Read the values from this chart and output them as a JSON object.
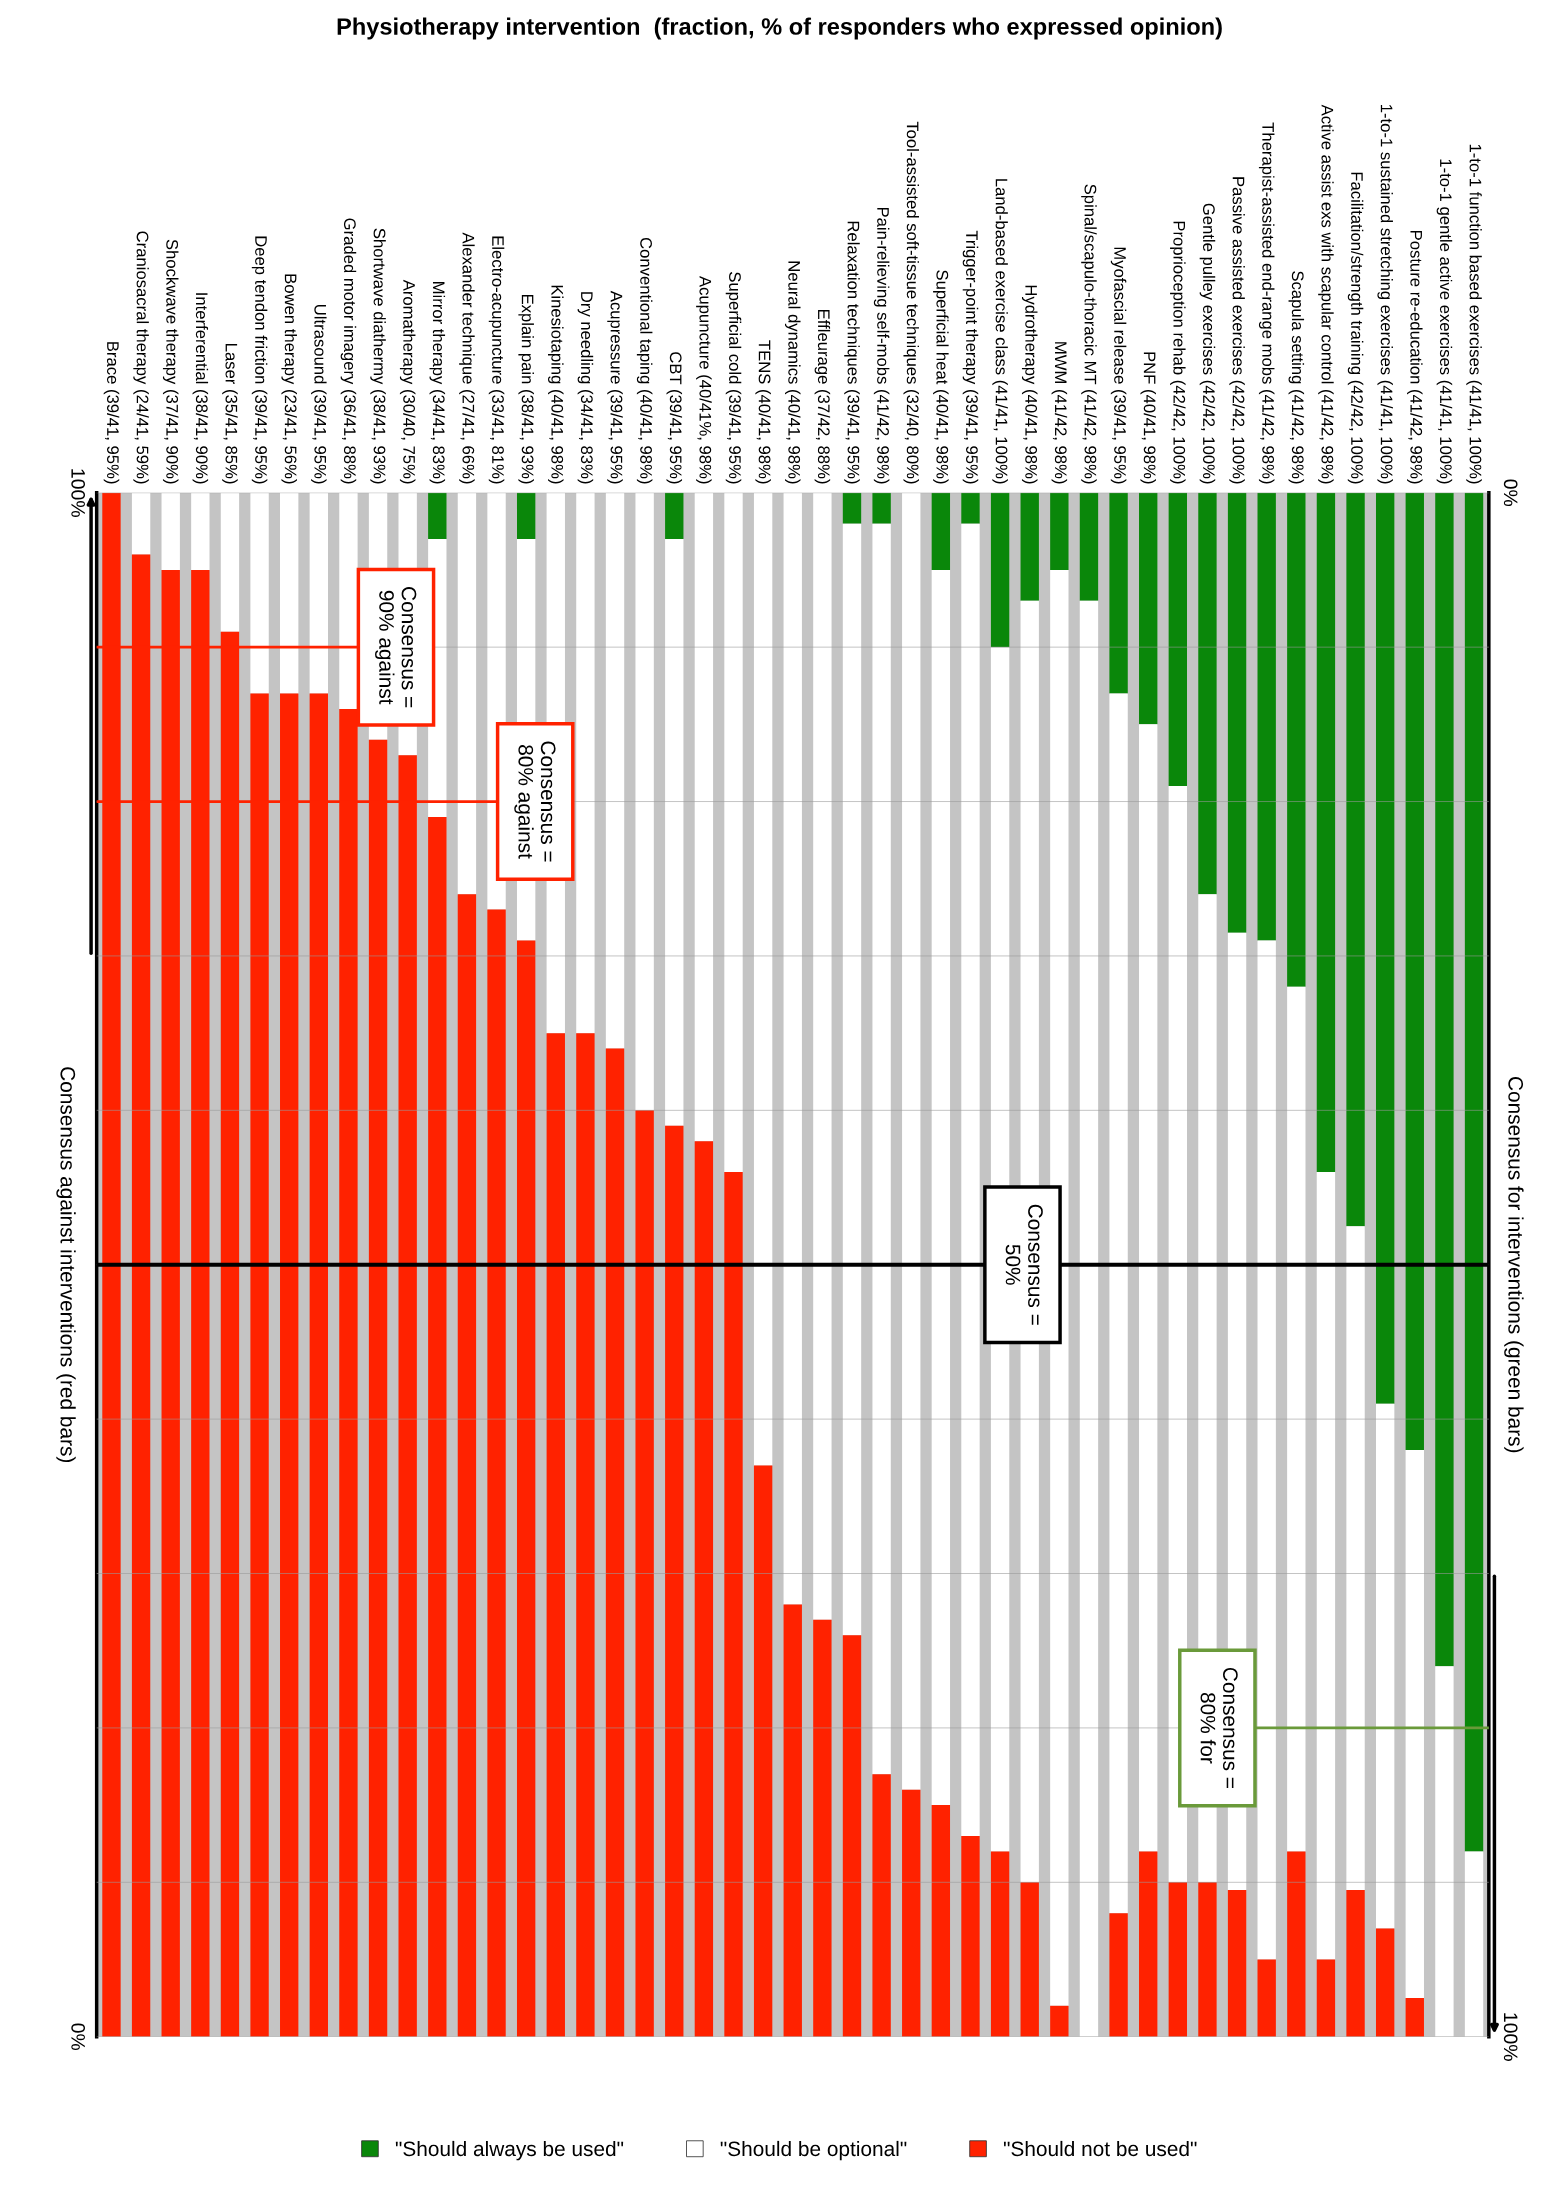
{
  "chart_data": {
    "type": "bar",
    "stacked": true,
    "title": "Physiotherapy intervention  (fraction, % of responders who expressed opinion)",
    "ylabel": "Consensus for interventions (green bars)",
    "y2label": "Consensus against interventions (red bars)",
    "categories": [
      "Brace (39/41, 95%)",
      "Craniosacral therapy (24/41, 59%)",
      "Shockwave therapy (37/41, 90%)",
      "Interferential (38/41, 90%)",
      "Laser (35/41, 85%)",
      "Deep tendon friction (39/41, 95%)",
      "Bowen therapy (23/41, 56%)",
      "Ultrasound (39/41, 95%)",
      "Graded motor imagery (36/41, 88%)",
      "Shortwave diathermy (38/41, 93%)",
      "Aromatherapy (30/40, 75%)",
      "Mirror therapy (34/41, 83%)",
      "Alexander technique (27/41, 66%)",
      "Electro-acupuncture (33/41, 81%)",
      "Explain pain (38/41, 93%)",
      "Kinesiotaping (40/41, 98%)",
      "Dry needling (34/41, 83%)",
      "Acupressure (39/41, 95%)",
      "Conventional taping (40/41, 98%)",
      "CBT (39/41, 95%)",
      "Acupuncture (40/41%, 98%)",
      "Superficial cold (39/41, 95%)",
      "TENS (40/41, 98%)",
      "Neural dynamics (40/41, 98%)",
      "Effleurage (37/42, 88%)",
      "Relaxation techniques (39/41, 95%)",
      "Pain-relieving self-mobs (41/42, 98%)",
      "Tool-assisted soft-tissue techniques (32/40, 80%)",
      "Superficial heat (40/41, 98%)",
      "Trigger-point therapy (39/41, 95%)",
      "Land-based exercise class (41/41, 100%)",
      "Hydrotherapy (40/41, 98%)",
      "MWM (41/42, 98%)",
      "Spinal/scapulo-thoracic MT (41/42, 98%)",
      "Myofascial release (39/41, 95%)",
      "PNF (40/41, 98%)",
      "Proprioception rehab (42/42, 100%)",
      "Gentle pulley exercises (42/42, 100%)",
      "Passive assisted exercises (42/42, 100%)",
      "Therapist-assisted end-range mobs (41/42, 98%)",
      "Scapula setting (41/42, 98%)",
      "Active assist exs with scapular control (41/42, 98%)",
      "Facilitation/strength training (42/42, 100%)",
      "1-to-1 sustained stretching exercises (41/41, 100%)",
      "Posture re-education (41/42, 98%)",
      "1-to-1 gentle active exercises (41/41, 100%)",
      "1-to-1 function based exercises (41/41, 100%)"
    ],
    "series": [
      {
        "name": "\"Should always be used\"",
        "color": "#0a870a",
        "values": [
          0,
          0,
          0,
          0,
          0,
          0,
          0,
          0,
          0,
          0,
          0,
          3,
          0,
          0,
          3,
          0,
          0,
          0,
          0,
          3,
          0,
          0,
          0,
          0,
          0,
          2,
          2,
          0,
          5,
          2,
          10,
          7,
          5,
          7,
          13,
          15,
          19,
          26,
          28.5,
          29,
          32,
          44,
          47.5,
          59,
          62,
          76,
          88
        ]
      },
      {
        "name": "\"Should be optional\"",
        "color": "#ffffff",
        "values": [
          0,
          4,
          5,
          5,
          9,
          13,
          13,
          13,
          14,
          16,
          17,
          18,
          26,
          27,
          26,
          35,
          35,
          36,
          40,
          38,
          42,
          44,
          63,
          72,
          73,
          72,
          81,
          84,
          80,
          85,
          78,
          83,
          93,
          93,
          79,
          73,
          71,
          64,
          62,
          66,
          56,
          51,
          43,
          34,
          35.5,
          24,
          12
        ]
      },
      {
        "name": "\"Should not be used\"",
        "color": "#ff2200",
        "values": [
          100,
          96,
          95,
          95,
          91,
          87,
          87,
          87,
          86,
          84,
          83,
          79,
          74,
          73,
          71,
          65,
          65,
          64,
          60,
          59,
          58,
          56,
          37,
          28,
          27,
          26,
          17,
          16,
          15,
          13,
          12,
          10,
          2,
          0,
          8,
          12,
          10,
          10,
          9.5,
          5,
          12,
          5,
          9.5,
          7,
          2.5,
          0,
          0
        ]
      }
    ],
    "ylim": [
      100,
      0
    ],
    "yticks": [
      {
        "value": 0,
        "label": "0%"
      },
      {
        "value": 10,
        "label": null
      },
      {
        "value": 20,
        "label": null
      },
      {
        "value": 30,
        "label": null
      },
      {
        "value": 40,
        "label": null
      },
      {
        "value": 50,
        "label": null
      },
      {
        "value": 60,
        "label": null
      },
      {
        "value": 70,
        "label": null
      },
      {
        "value": 80,
        "label": null
      },
      {
        "value": 90,
        "label": null
      },
      {
        "value": 100,
        "label": "100%"
      }
    ],
    "y2lim": [
      0,
      100
    ],
    "y2ticks": [
      {
        "value": 0,
        "label": "0%"
      },
      {
        "value": 100,
        "label": "100%"
      }
    ],
    "grid": "y",
    "legend": "bottom",
    "ref_lines": [
      {
        "axis": "y2",
        "value": 90,
        "label": "Consensus =\n90% against",
        "color": "#ff2200"
      },
      {
        "axis": "y2",
        "value": 80,
        "label": "Consensus =\n80% against",
        "color": "#ff2200"
      },
      {
        "axis": "y",
        "value": 50,
        "label": "Consensus =\n50%",
        "color": "#000000"
      },
      {
        "axis": "y",
        "value": 80,
        "label": "Consensus =\n80% for",
        "color": "#6a9a3a"
      }
    ]
  }
}
